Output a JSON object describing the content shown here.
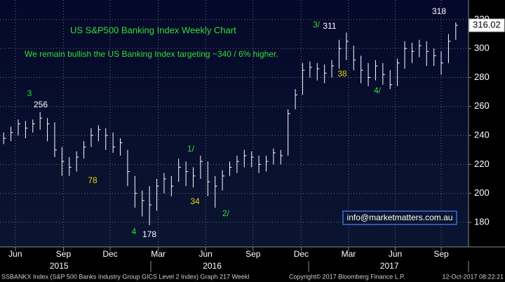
{
  "chart_data": {
    "type": "hlc",
    "title": "US S&P500 Banking Index Weekly Chart",
    "subtitle": "We remain bullish the US Banking Index targeting ~340 / 6% higher.",
    "high": [
      242,
      246,
      251,
      250,
      251,
      256,
      252,
      249,
      232,
      225,
      229,
      236,
      245,
      247,
      245,
      242,
      238,
      230,
      212,
      202,
      205,
      210,
      214,
      212,
      224,
      222,
      218,
      226,
      222,
      212,
      216,
      222,
      226,
      230,
      229,
      226,
      226,
      231,
      230,
      258,
      272,
      290,
      291,
      290,
      289,
      292,
      306,
      311,
      302,
      295,
      290,
      292,
      290,
      285,
      293,
      305,
      304,
      306,
      305,
      300,
      298,
      310,
      318
    ],
    "low": [
      234,
      236,
      240,
      238,
      242,
      244,
      236,
      225,
      212,
      212,
      215,
      224,
      232,
      236,
      230,
      228,
      226,
      205,
      190,
      184,
      178,
      188,
      200,
      198,
      208,
      205,
      204,
      210,
      198,
      190,
      202,
      212,
      214,
      218,
      218,
      214,
      215,
      220,
      220,
      226,
      258,
      268,
      280,
      278,
      276,
      280,
      286,
      292,
      285,
      276,
      274,
      278,
      275,
      272,
      274,
      286,
      290,
      294,
      288,
      288,
      282,
      290,
      306
    ],
    "close": [
      238,
      242,
      248,
      245,
      248,
      252,
      248,
      230,
      222,
      218,
      225,
      232,
      240,
      244,
      240,
      232,
      235,
      215,
      200,
      195,
      192,
      205,
      210,
      205,
      218,
      215,
      212,
      222,
      208,
      205,
      212,
      218,
      222,
      226,
      225,
      220,
      222,
      228,
      226,
      255,
      268,
      285,
      287,
      286,
      283,
      288,
      300,
      305,
      292,
      285,
      280,
      288,
      282,
      275,
      290,
      300,
      298,
      302,
      298,
      295,
      290,
      305,
      316.02
    ],
    "color": "#ffffff",
    "xlim": [
      -0.5,
      63.75
    ],
    "xticks": [
      {
        "value": 1.6,
        "label": "Jun"
      },
      {
        "value": 8.2,
        "label": "Sep"
      },
      {
        "value": 14.6,
        "label": "Dec"
      },
      {
        "value": 21.2,
        "label": "Mar"
      },
      {
        "value": 27.7,
        "label": "Jun"
      },
      {
        "value": 34.2,
        "label": "Sep"
      },
      {
        "value": 40.8,
        "label": "Dec"
      },
      {
        "value": 47.3,
        "label": "Mar"
      },
      {
        "value": 53.7,
        "label": "Jun"
      },
      {
        "value": 60.0,
        "label": "Sep"
      }
    ],
    "year_ticks": [
      {
        "value": 7.6,
        "label": "2015"
      },
      {
        "value": 28.6,
        "label": "2016"
      },
      {
        "value": 52.9,
        "label": "2017"
      }
    ],
    "ylim": [
      163,
      333.5
    ],
    "yticks": [
      180,
      200,
      220,
      240,
      260,
      280,
      300,
      320
    ],
    "grid": true,
    "annotations": [
      {
        "text": "3",
        "color": "#33dd33"
      },
      {
        "text": "256",
        "color": "#ffffff"
      },
      {
        "text": "78",
        "color": "#f0d000"
      },
      {
        "text": "4",
        "color": "#33dd33"
      },
      {
        "text": "178",
        "color": "#ffffff"
      },
      {
        "text": "1/",
        "color": "#33dd33"
      },
      {
        "text": "34",
        "color": "#f0d000"
      },
      {
        "text": "2/",
        "color": "#33dd33"
      },
      {
        "text": "3/",
        "color": "#33dd33"
      },
      {
        "text": "311",
        "color": "#ffffff"
      },
      {
        "text": "38",
        "color": "#f0d000"
      },
      {
        "text": "4/",
        "color": "#33dd33"
      },
      {
        "text": "318",
        "color": "#ffffff"
      }
    ],
    "watermark": "info@marketmatters.com.au",
    "footer_left": "SSBANKX Index (S&P 500 Banks Industry Group GICS Level 2 Index) Graph 217  Weekl",
    "footer_mid": "Copyright© 2017 Bloomberg Finance L.P.",
    "footer_right": "12-Oct-2017 08:22:21"
  }
}
